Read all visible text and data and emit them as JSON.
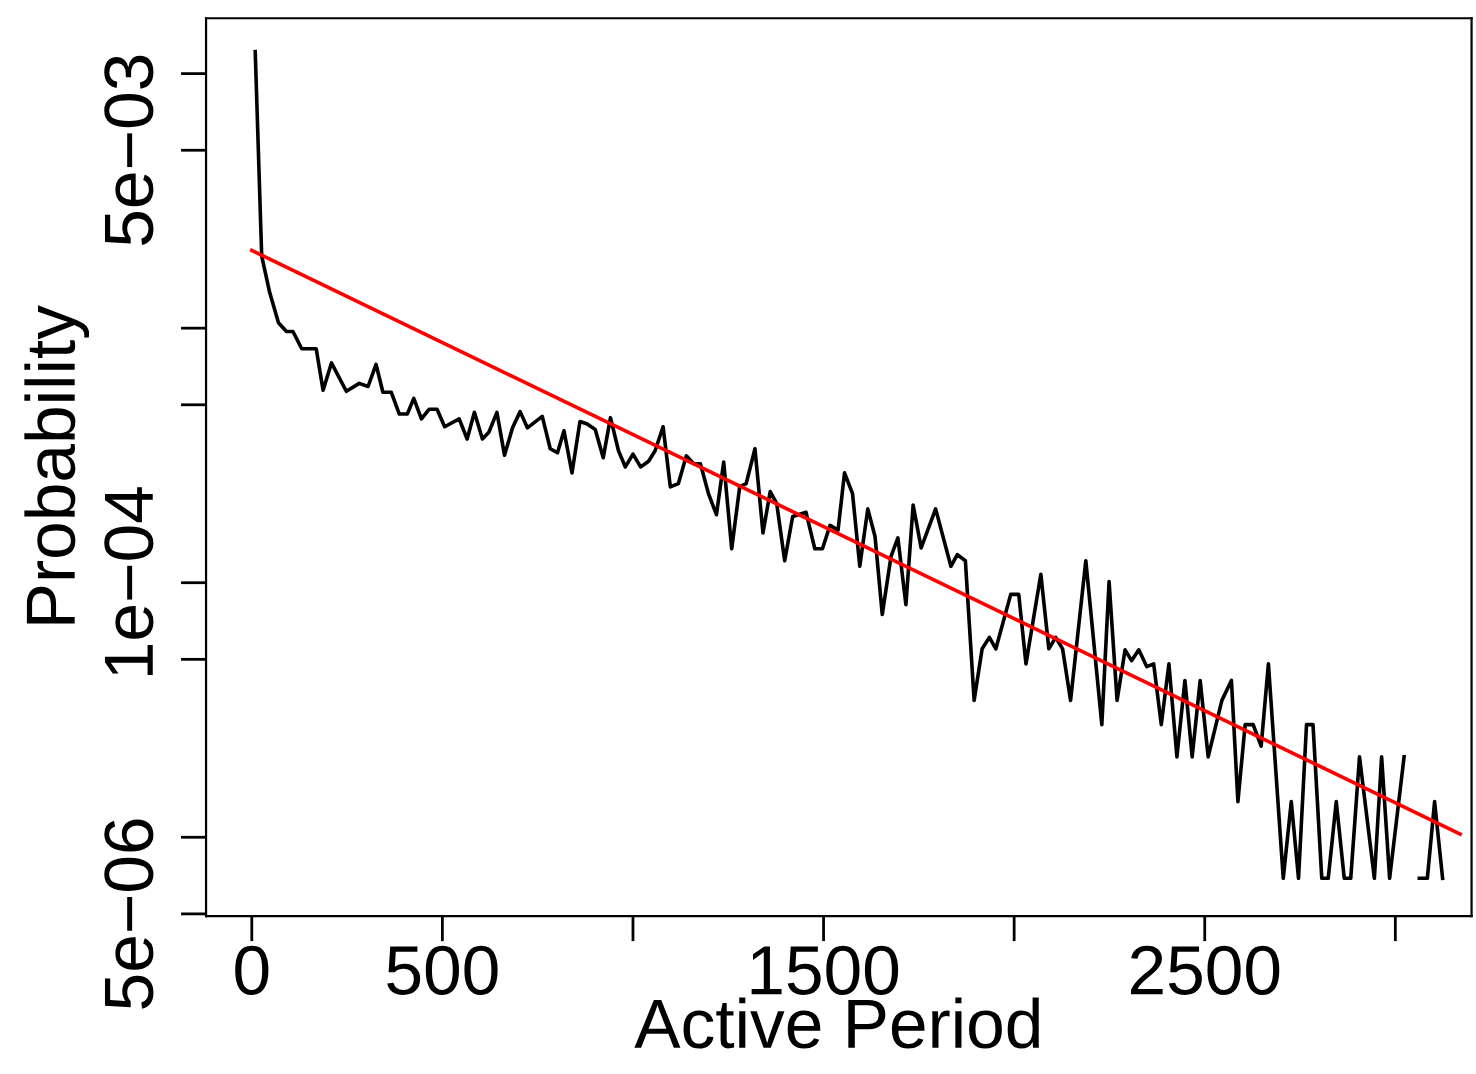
{
  "chart_data": {
    "type": "line",
    "xlabel": "Active Period",
    "ylabel": "Probability",
    "log": "y",
    "grid": false,
    "legend": false,
    "marker": "none",
    "line_style": "solid",
    "xlim": [
      -120,
      3200
    ],
    "ylim": [
      4.9e-06,
      0.0165
    ],
    "xticks": [
      0,
      500,
      {
        "value": 1000,
        "label": null
      },
      1500,
      {
        "value": 2000,
        "label": null
      },
      2500,
      {
        "value": 3000,
        "label": null
      }
    ],
    "yticks": [
      {
        "value": 0.01,
        "label": null
      },
      {
        "value": 0.005,
        "label": "5e−03"
      },
      {
        "value": 0.001,
        "label": null
      },
      {
        "value": 0.0005,
        "label": null
      },
      {
        "value": 0.0001,
        "label": "1e−04"
      },
      {
        "value": 5e-05,
        "label": null
      },
      {
        "value": 1e-05,
        "label": null
      },
      {
        "value": 5e-06,
        "label": "5e−06"
      }
    ],
    "series": [
      {
        "color": "#000000",
        "x": [
          9,
          26,
          47,
          70,
          91,
          108,
          131,
          169,
          187,
          209,
          248,
          282,
          305,
          326,
          344,
          366,
          387,
          408,
          425,
          445,
          465,
          486,
          506,
          544,
          565,
          584,
          605,
          622,
          643,
          663,
          684,
          704,
          723,
          762,
          783,
          802,
          819,
          840,
          861,
          880,
          901,
          922,
          941,
          962,
          980,
          1000,
          1020,
          1041,
          1058,
          1079,
          1098,
          1119,
          1140,
          1160,
          1177,
          1198,
          1219,
          1238,
          1259,
          1280,
          1297,
          1320,
          1341,
          1360,
          1377,
          1398,
          1419,
          1454,
          1477,
          1497,
          1517,
          1538,
          1555,
          1576,
          1595,
          1616,
          1635,
          1654,
          1677,
          1695,
          1716,
          1735,
          1756,
          1794,
          1834,
          1851,
          1872,
          1895,
          1916,
          1935,
          1952,
          1991,
          2012,
          2031,
          2070,
          2091,
          2109,
          2127,
          2148,
          2188,
          2230,
          2249,
          2270,
          2291,
          2308,
          2327,
          2348,
          2366,
          2386,
          2406,
          2427,
          2448,
          2467,
          2488,
          2509,
          2545,
          2570,
          2587,
          2606,
          2627,
          2648,
          2667,
          2706,
          2727,
          2746,
          2767,
          2784,
          2807,
          2824,
          2845,
          2866,
          2883,
          2906,
          2945,
          2964,
          2985,
          3023,
          3043,
          3063,
          3084,
          3103,
          3124
        ],
        "values": [
          0.0122,
          0.00192,
          0.00138,
          0.00105,
          0.00097,
          0.00097,
          0.00083,
          0.00083,
          0.00057,
          0.00073,
          0.000565,
          0.000607,
          0.00059,
          0.00072,
          0.00056,
          0.00056,
          0.00046,
          0.00046,
          0.00053,
          0.00044,
          0.00048,
          0.00048,
          0.00041,
          0.00044,
          0.000367,
          0.000467,
          0.000367,
          0.00039,
          0.000467,
          0.000317,
          0.000406,
          0.00047,
          0.000406,
          0.00045,
          0.000336,
          0.000324,
          0.000395,
          0.00027,
          0.00043,
          0.00042,
          0.0004,
          0.00031,
          0.000445,
          0.00033,
          0.000285,
          0.00032,
          0.000285,
          0.0003,
          0.00033,
          0.00041,
          0.000238,
          0.000245,
          0.000315,
          0.000293,
          0.000293,
          0.000224,
          0.000185,
          0.000298,
          0.000136,
          0.000238,
          0.000245,
          0.000336,
          0.000157,
          0.000228,
          0.000205,
          0.000122,
          0.000182,
          0.000189,
          0.000136,
          0.000136,
          0.000168,
          0.000161,
          0.00027,
          0.000224,
          0.000116,
          0.000195,
          0.000152,
          7.5e-05,
          0.000127,
          0.00015,
          8.2e-05,
          0.000202,
          0.000137,
          0.000195,
          0.000116,
          0.000129,
          0.000122,
          3.45e-05,
          5.5e-05,
          6.1e-05,
          5.5e-05,
          9e-05,
          9e-05,
          4.8e-05,
          0.000108,
          5.5e-05,
          6.1e-05,
          5.5e-05,
          3.45e-05,
          0.000122,
          2.77e-05,
          0.000101,
          3.45e-05,
          5.45e-05,
          4.94e-05,
          5.45e-05,
          4.68e-05,
          4.8e-05,
          2.77e-05,
          4.8e-05,
          2.07e-05,
          4.13e-05,
          2.07e-05,
          4.13e-05,
          2.07e-05,
          3.45e-05,
          4.13e-05,
          1.38e-05,
          2.77e-05,
          2.77e-05,
          2.28e-05,
          4.8e-05,
          6.9e-06,
          1.38e-05,
          6.9e-06,
          2.77e-05,
          2.77e-05,
          6.9e-06,
          6.9e-06,
          1.38e-05,
          6.9e-06,
          6.9e-06,
          2.07e-05,
          6.9e-06,
          2.07e-05,
          6.9e-06,
          2.07e-05,
          null,
          6.9e-06,
          6.9e-06,
          1.38e-05,
          6.9e-06
        ]
      },
      {
        "color": "#ff0000",
        "x": [
          0,
          3170
        ],
        "values": [
          0.00202,
          1.03e-05
        ]
      }
    ]
  }
}
